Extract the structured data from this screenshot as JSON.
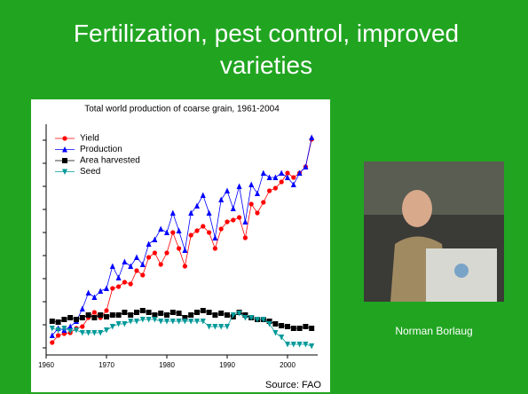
{
  "slide": {
    "title": "Fertilization, pest control, improved varieties",
    "caption": "Norman Borlaug"
  },
  "chart_data": {
    "type": "line",
    "title": "Total world production of coarse grain, 1961-2004",
    "source": "Source: FAO",
    "x": [
      1961,
      1962,
      1963,
      1964,
      1965,
      1966,
      1967,
      1968,
      1969,
      1970,
      1971,
      1972,
      1973,
      1974,
      1975,
      1976,
      1977,
      1978,
      1979,
      1980,
      1981,
      1982,
      1983,
      1984,
      1985,
      1986,
      1987,
      1988,
      1989,
      1990,
      1991,
      1992,
      1993,
      1994,
      1995,
      1996,
      1997,
      1998,
      1999,
      2000,
      2001,
      2002,
      2003,
      2004
    ],
    "xlim": [
      1960,
      2005
    ],
    "xticks": [
      1960,
      1970,
      1980,
      1990,
      2000
    ],
    "ylim": [
      0,
      260
    ],
    "yticks": [
      8,
      34,
      60,
      86,
      112,
      138,
      164,
      190,
      216,
      242
    ],
    "legend": "upper left",
    "series": [
      {
        "name": "Yield",
        "color": "#ff0000",
        "marker": "circle",
        "values": [
          14,
          22,
          24,
          25,
          30,
          32,
          42,
          48,
          42,
          50,
          75,
          77,
          82,
          80,
          95,
          90,
          110,
          115,
          102,
          115,
          138,
          120,
          100,
          135,
          140,
          145,
          138,
          120,
          142,
          150,
          152,
          155,
          132,
          170,
          160,
          172,
          185,
          188,
          195,
          205,
          200,
          205,
          212,
          243
        ]
      },
      {
        "name": "Production",
        "color": "#0000ff",
        "marker": "triangle-up",
        "values": [
          22,
          30,
          28,
          32,
          38,
          52,
          70,
          65,
          72,
          75,
          100,
          87,
          105,
          100,
          110,
          102,
          125,
          130,
          142,
          138,
          160,
          140,
          118,
          160,
          168,
          180,
          160,
          132,
          175,
          185,
          165,
          190,
          150,
          192,
          182,
          205,
          200,
          200,
          205,
          200,
          192,
          205,
          212,
          245
        ]
      },
      {
        "name": "Area harvested",
        "color": "#000000",
        "marker": "square",
        "values": [
          38,
          37,
          40,
          42,
          40,
          42,
          45,
          42,
          45,
          43,
          45,
          45,
          48,
          45,
          48,
          50,
          48,
          45,
          47,
          45,
          48,
          47,
          42,
          45,
          48,
          50,
          48,
          45,
          47,
          45,
          43,
          48,
          45,
          42,
          40,
          40,
          38,
          35,
          33,
          32,
          30,
          30,
          32,
          30
        ]
      },
      {
        "name": "Seed",
        "color": "#009999",
        "marker": "triangle-down",
        "values": [
          30,
          28,
          30,
          27,
          28,
          25,
          25,
          25,
          25,
          28,
          32,
          35,
          35,
          38,
          38,
          40,
          40,
          40,
          38,
          38,
          38,
          38,
          38,
          38,
          38,
          38,
          32,
          32,
          32,
          32,
          45,
          47,
          42,
          42,
          40,
          40,
          35,
          25,
          20,
          12,
          12,
          12,
          12,
          10
        ]
      }
    ]
  }
}
